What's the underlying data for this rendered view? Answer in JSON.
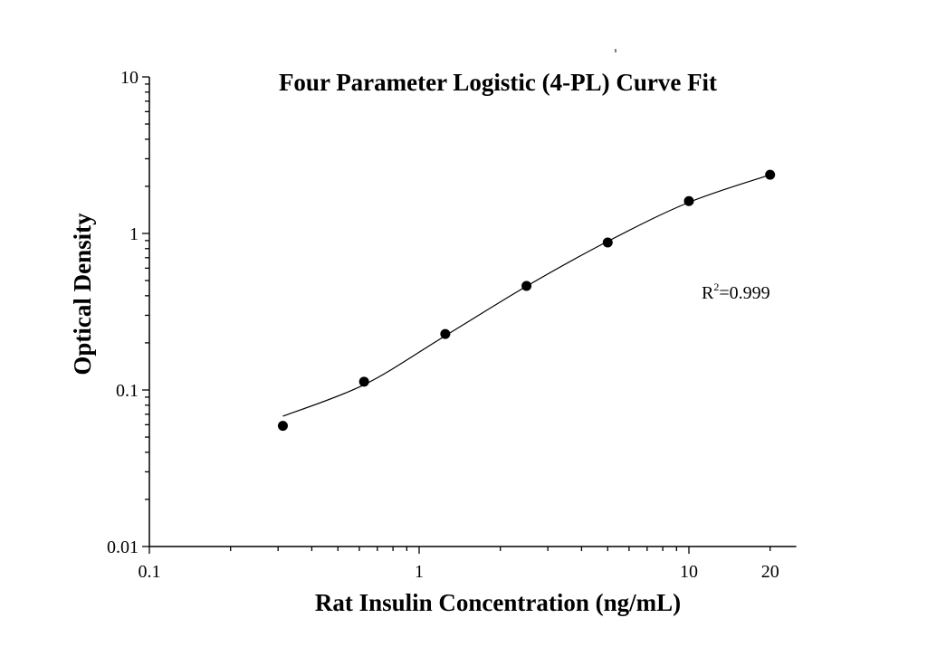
{
  "chart_data": {
    "type": "scatter",
    "title": "Four Parameter Logistic (4-PL) Curve Fit",
    "xlabel": "Rat Insulin Concentration (ng/mL)",
    "ylabel": "Optical Density",
    "x_scale": "log",
    "y_scale": "log",
    "xlim": [
      0.1,
      25
    ],
    "ylim": [
      0.01,
      10
    ],
    "x_ticks": [
      {
        "value": 0.1,
        "label": "0.1"
      },
      {
        "value": 1,
        "label": "1"
      },
      {
        "value": 10,
        "label": "10"
      },
      {
        "value": 20,
        "label": "20"
      }
    ],
    "y_ticks": [
      {
        "value": 0.01,
        "label": "0.01"
      },
      {
        "value": 0.1,
        "label": "0.1"
      },
      {
        "value": 1,
        "label": "1"
      },
      {
        "value": 10,
        "label": "10"
      }
    ],
    "grid": false,
    "series": [
      {
        "type": "scatter",
        "x": [
          0.3125,
          0.625,
          1.25,
          2.5,
          5,
          10,
          20
        ],
        "y": [
          0.059,
          0.113,
          0.228,
          0.462,
          0.875,
          1.61,
          2.37
        ],
        "color": "#000000"
      },
      {
        "type": "line",
        "x": [
          0.3125,
          0.625,
          1.25,
          2.5,
          5,
          10,
          20
        ],
        "y": [
          0.068,
          0.108,
          0.222,
          0.46,
          0.89,
          1.58,
          2.37
        ],
        "color": "#000000"
      }
    ],
    "annotations": {
      "r2_prefix": "R",
      "r2_sup": "2",
      "r2_value": "=0.999"
    }
  }
}
